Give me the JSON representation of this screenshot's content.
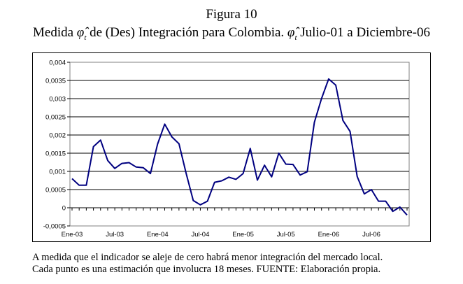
{
  "figure": {
    "label": "Figura 10",
    "title_pre": "Medida",
    "title_mid": "de (Des) Integración para Colombia.",
    "title_post": "Julio-01 a Diciembre-06",
    "symbol": "φ̂",
    "symbol_sub": "t"
  },
  "note": {
    "line1": "A medida que el indicador se aleje de cero habrá menor integración del mercado local.",
    "line2": "Cada punto es una estimación que involucra 18 meses. FUENTE: Elaboración propia."
  },
  "chart_data": {
    "type": "line",
    "title": "Medida φ̂t de (Des) Integración para Colombia. φ̂t Julio-01 a Diciembre-06",
    "xlabel": "",
    "ylabel": "",
    "ylim": [
      -0.0005,
      0.004
    ],
    "yticks": [
      "0,004",
      "0,0035",
      "0,003",
      "0,0025",
      "0,002",
      "0,0015",
      "0,001",
      "0,0005",
      "0",
      "-0,0005"
    ],
    "ytick_values": [
      0.004,
      0.0035,
      0.003,
      0.0025,
      0.002,
      0.0015,
      0.001,
      0.0005,
      0,
      -0.0005
    ],
    "xticks": [
      "Ene-03",
      "Jul-03",
      "Ene-04",
      "Jul-04",
      "Ene-05",
      "Jul-05",
      "Ene-06",
      "Jul-06"
    ],
    "xtick_index": [
      0,
      6,
      12,
      18,
      24,
      30,
      36,
      42
    ],
    "grid": true,
    "color": "#000080",
    "series": [
      {
        "name": "phi_t",
        "values": [
          0.0008,
          0.00062,
          0.00062,
          0.00168,
          0.00186,
          0.0013,
          0.00108,
          0.00122,
          0.00124,
          0.00112,
          0.0011,
          0.00094,
          0.00175,
          0.0023,
          0.00195,
          0.00176,
          0.00095,
          0.0002,
          8e-05,
          0.00018,
          0.0007,
          0.00074,
          0.00084,
          0.00078,
          0.00094,
          0.00163,
          0.00076,
          0.00117,
          0.00085,
          0.0015,
          0.0012,
          0.00119,
          0.0009,
          0.00099,
          0.00235,
          0.003,
          0.00354,
          0.00337,
          0.0024,
          0.0021,
          0.00086,
          0.00038,
          0.0005,
          0.00018,
          0.00018,
          -0.0001,
          2e-05,
          -0.0002
        ]
      }
    ]
  }
}
